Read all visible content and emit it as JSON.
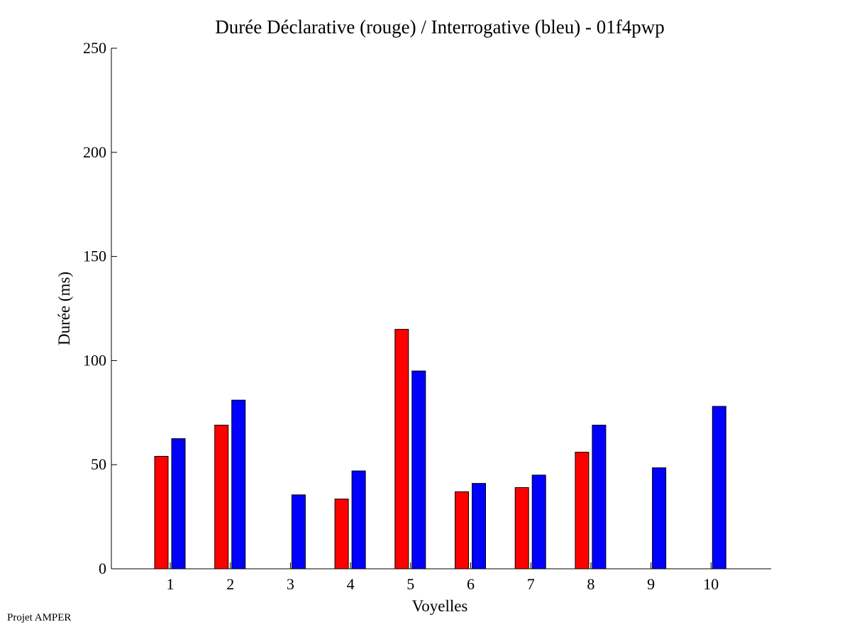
{
  "footer": "Projet AMPER",
  "chart_data": {
    "type": "bar",
    "title": "Durée Déclarative (rouge) / Interrogative (bleu) - 01f4pwp",
    "xlabel": "Voyelles",
    "ylabel": "Durée (ms)",
    "categories": [
      "1",
      "2",
      "3",
      "4",
      "5",
      "6",
      "7",
      "8",
      "9",
      "10"
    ],
    "ylim": [
      0,
      250
    ],
    "yticks": [
      0,
      50,
      100,
      150,
      200,
      250
    ],
    "grid": false,
    "series": [
      {
        "color": "#ff0000",
        "values": [
          54,
          69,
          0,
          33.5,
          115,
          37,
          39,
          56,
          0,
          0
        ]
      },
      {
        "color": "#0000ff",
        "values": [
          62.5,
          81,
          35.5,
          47,
          95,
          41,
          45,
          69,
          48.5,
          78
        ]
      }
    ]
  }
}
